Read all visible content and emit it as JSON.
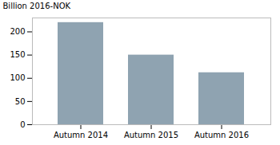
{
  "chart_data": {
    "type": "bar",
    "categories": [
      "Autumn 2014",
      "Autumn 2015",
      "Autumn 2016"
    ],
    "values": [
      220,
      150,
      112
    ],
    "color": "#8fa3b1",
    "ylabel": "Billion 2016-NOK",
    "ylim": [
      0,
      230
    ],
    "yticks": [
      0,
      50,
      100,
      150,
      200
    ],
    "grid": false
  }
}
